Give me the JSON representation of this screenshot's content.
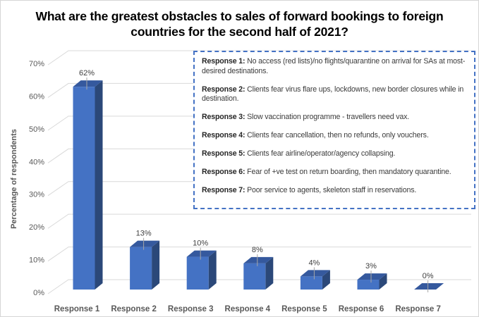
{
  "title": "What are the greatest obstacles to sales of forward bookings to foreign countries for the second half of 2021?",
  "chart_data": {
    "type": "bar",
    "style": "3d-column",
    "categories": [
      "Response 1",
      "Response 2",
      "Response 3",
      "Response 4",
      "Response 5",
      "Response 6",
      "Response 7"
    ],
    "values": [
      62,
      13,
      10,
      8,
      4,
      3,
      0
    ],
    "data_labels": [
      "62%",
      "13%",
      "10%",
      "8%",
      "4%",
      "3%",
      "0%"
    ],
    "xlabel": "",
    "ylabel": "Percentage of respondents",
    "ylim": [
      0,
      70
    ],
    "ytick_step": 10,
    "ytick_labels": [
      "0%",
      "10%",
      "20%",
      "30%",
      "40%",
      "50%",
      "60%",
      "70%"
    ],
    "grid": true,
    "legend_position": "top-right overlay",
    "colors": {
      "bar_front": "#4472C4",
      "bar_side": "#2B4879",
      "bar_top": "#35599E",
      "gridline": "#D9D9D9",
      "leader": "#A6A6A6",
      "axis_text": "#595959",
      "data_label": "#404040"
    }
  },
  "legend": {
    "border_color": "#4472C4",
    "items": [
      {
        "label": "Response 1:",
        "text": "No access (red lists)/no flights/quarantine on arrival for SAs at most-desired destinations."
      },
      {
        "label": "Response 2:",
        "text": "Clients fear virus flare ups, lockdowns, new border closures while in destination."
      },
      {
        "label": "Response 3:",
        "text": "Slow vaccination programme - travellers need vax."
      },
      {
        "label": "Response 4:",
        "text": "Clients fear cancellation, then no refunds, only vouchers."
      },
      {
        "label": "Response 5:",
        "text": "Clients fear airline/operator/agency collapsing."
      },
      {
        "label": "Response 6:",
        "text": "Fear of +ve test on return boarding, then mandatory quarantine."
      },
      {
        "label": "Response 7:",
        "text": "Poor service to agents, skeleton staff in reservations."
      }
    ]
  }
}
